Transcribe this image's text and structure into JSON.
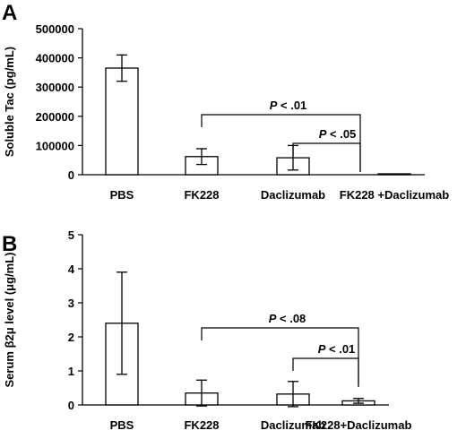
{
  "chart_data": [
    {
      "type": "bar",
      "panel_label": "A",
      "ylabel": "Soluble Tac (pg/mL)",
      "ylim": [
        0,
        500000
      ],
      "yticks": [
        "0",
        "100000",
        "200000",
        "300000",
        "400000",
        "500000"
      ],
      "categories": [
        "PBS",
        "FK228",
        "Daclizumab",
        "FK228 +Daclizumab"
      ],
      "values": [
        365000,
        62000,
        58000,
        3000
      ],
      "errors": [
        45000,
        27000,
        42000,
        0
      ],
      "annotations": [
        {
          "p_letter": "P",
          "text": " < .01",
          "from": 1,
          "to": 3
        },
        {
          "p_letter": "P",
          "text": " < .05",
          "from": 2,
          "to": 3
        }
      ]
    },
    {
      "type": "bar",
      "panel_label": "B",
      "ylabel": "Serum β2μ level (μg/mL)",
      "ylim": [
        0,
        5
      ],
      "yticks": [
        "0",
        "1",
        "2",
        "3",
        "4",
        "5"
      ],
      "categories": [
        "PBS",
        "FK228",
        "Daclizumab",
        "FK228+Daclizumab"
      ],
      "values": [
        2.4,
        0.35,
        0.32,
        0.12
      ],
      "errors": [
        1.5,
        0.38,
        0.37,
        0.07
      ],
      "annotations": [
        {
          "p_letter": "P",
          "text": " < .08",
          "from": 1,
          "to": 3
        },
        {
          "p_letter": "P",
          "text": " < .01",
          "from": 2,
          "to": 3
        }
      ]
    }
  ]
}
